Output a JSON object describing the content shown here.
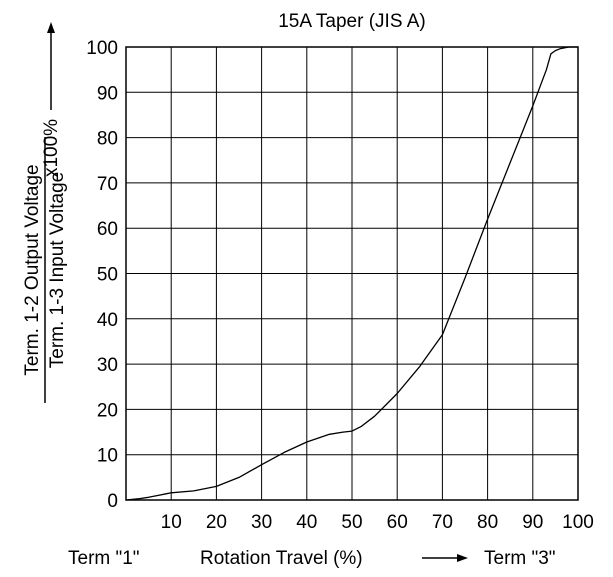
{
  "chart_data": {
    "type": "line",
    "title": "15A Taper (JIS A)",
    "x_ticks": [
      10,
      20,
      30,
      40,
      50,
      60,
      70,
      80,
      90,
      100
    ],
    "y_ticks": [
      0,
      10,
      20,
      30,
      40,
      50,
      60,
      70,
      80,
      90,
      100
    ],
    "xlim": [
      0,
      100
    ],
    "ylim": [
      0,
      100
    ],
    "grid": true,
    "xlabel": {
      "left_term": "Term \"1\"",
      "caption": "Rotation Travel (%)",
      "right_term": "Term \"3\""
    },
    "ylabel": {
      "numerator": "Term. 1-2 Output Voltage",
      "denominator": "Term. 1-3 Input Voltage",
      "multiplier": "x100%"
    },
    "series": [
      {
        "x": [
          0,
          3,
          5,
          7,
          9,
          10,
          15,
          20,
          25,
          30,
          35,
          40,
          45,
          48,
          50,
          52,
          55,
          60,
          65,
          70,
          75,
          80,
          85,
          90,
          93,
          94,
          95,
          96,
          97,
          98,
          100
        ],
        "y": [
          0,
          0.3,
          0.6,
          1,
          1.4,
          1.6,
          2,
          3,
          5,
          7.8,
          10.5,
          12.8,
          14.5,
          15,
          15.2,
          16.2,
          18.5,
          23.5,
          29.5,
          36.5,
          49,
          62,
          74.5,
          87,
          95,
          98.5,
          99.2,
          99.6,
          99.8,
          100,
          100
        ]
      }
    ]
  }
}
